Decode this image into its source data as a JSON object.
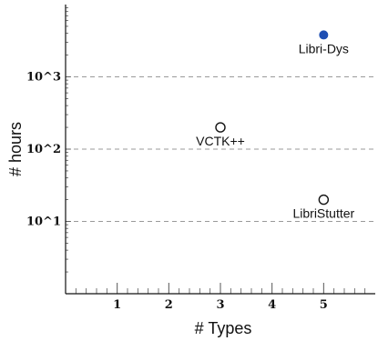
{
  "chart_data": {
    "type": "scatter",
    "title": "",
    "xlabel": "# Types",
    "ylabel": "# hours",
    "xlim": [
      0,
      6
    ],
    "ylim": [
      1,
      10000
    ],
    "yscale": "log",
    "grid": "dashed horizontal at decades",
    "x_ticks": [
      {
        "value": 1,
        "label": "1"
      },
      {
        "value": 2,
        "label": "2"
      },
      {
        "value": 3,
        "label": "3"
      },
      {
        "value": 4,
        "label": "4"
      },
      {
        "value": 5,
        "label": "5"
      }
    ],
    "y_ticks": [
      {
        "value": 10,
        "label": "10^1"
      },
      {
        "value": 100,
        "label": "10^2"
      },
      {
        "value": 1000,
        "label": "10^3"
      }
    ],
    "points": [
      {
        "label": "Libri-Dys",
        "x": 5,
        "y": 3800,
        "marker": "filled",
        "color": "#1f4fb3"
      },
      {
        "label": "VCTK++",
        "x": 3,
        "y": 200,
        "marker": "hollow",
        "color": "#111111"
      },
      {
        "label": "LibriStutter",
        "x": 5,
        "y": 20,
        "marker": "hollow",
        "color": "#111111"
      }
    ]
  }
}
